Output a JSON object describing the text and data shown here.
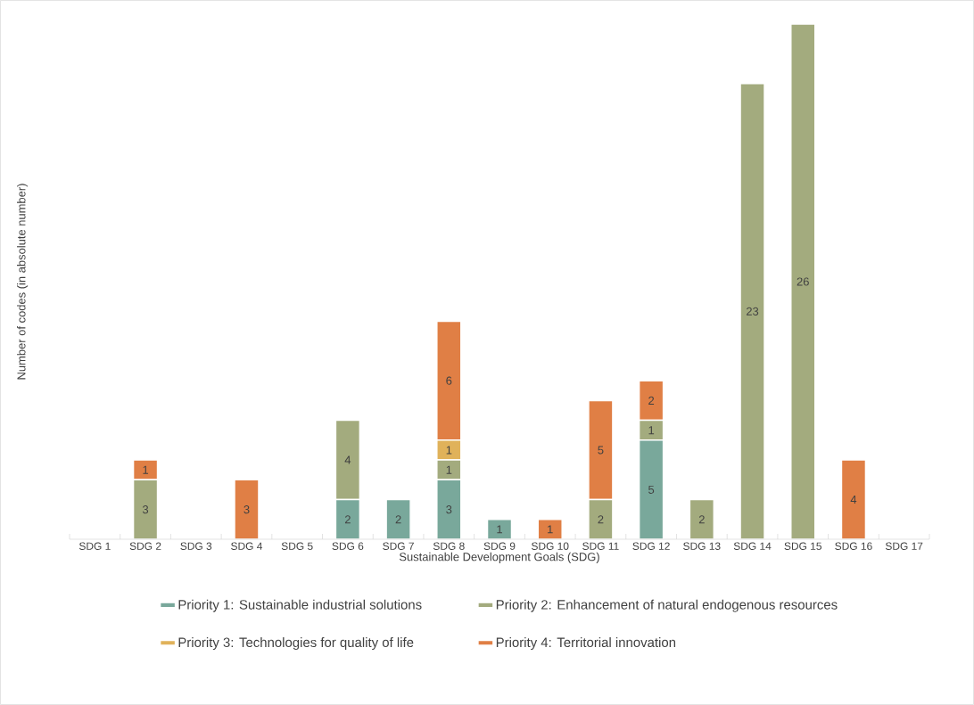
{
  "chart_data": {
    "type": "bar",
    "stacked": true,
    "xlabel": "Sustainable Development Goals (SDG)",
    "ylabel": "Number of codes (in absolute number)",
    "categories": [
      "SDG 1",
      "SDG 2",
      "SDG 3",
      "SDG 4",
      "SDG 5",
      "SDG 6",
      "SDG 7",
      "SDG 8",
      "SDG 9",
      "SDG 10",
      "SDG 11",
      "SDG 12",
      "SDG 13",
      "SDG 14",
      "SDG 15",
      "SDG 16",
      "SDG 17"
    ],
    "series": [
      {
        "name": "Priority 1: Sustainable industrial solutions",
        "color": "#79a89b",
        "values": [
          null,
          null,
          null,
          null,
          null,
          2,
          2,
          3,
          1,
          null,
          null,
          5,
          null,
          null,
          null,
          null,
          null
        ]
      },
      {
        "name": "Priority 2: Enhancement of natural endogenous resources",
        "color": "#a3ab7e",
        "values": [
          null,
          3,
          null,
          null,
          null,
          4,
          null,
          1,
          null,
          null,
          2,
          1,
          2,
          23,
          26,
          null,
          null
        ]
      },
      {
        "name": "Priority 3: Technologies for quality of life",
        "color": "#e0b25a",
        "values": [
          null,
          null,
          null,
          null,
          null,
          null,
          null,
          1,
          null,
          null,
          null,
          null,
          null,
          null,
          null,
          null,
          null
        ]
      },
      {
        "name": "Priority 4: Territorial innovation",
        "color": "#e07f45",
        "values": [
          null,
          1,
          null,
          3,
          null,
          null,
          null,
          6,
          null,
          1,
          5,
          2,
          null,
          null,
          null,
          4,
          null
        ]
      }
    ],
    "data_labels": true,
    "grid": false,
    "legend": "bottom"
  }
}
